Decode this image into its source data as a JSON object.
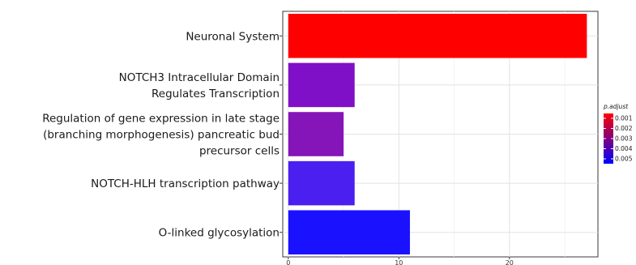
{
  "chart_data": {
    "type": "bar",
    "orientation": "horizontal",
    "categories": [
      [
        "Neuronal System"
      ],
      [
        "NOTCH3 Intracellular Domain",
        "Regulates Transcription"
      ],
      [
        "Regulation of gene expression in late stage",
        "(branching morphogenesis) pancreatic bud",
        "precursor cells"
      ],
      [
        "NOTCH-HLH transcription pathway"
      ],
      [
        "O-linked glycosylation"
      ]
    ],
    "values": [
      27,
      6,
      5,
      6,
      11
    ],
    "p_adjust": [
      0.0006,
      0.0033,
      0.0034,
      0.0049,
      0.0054
    ],
    "bar_colors": [
      "#ff0000",
      "#7f10c8",
      "#8514b9",
      "#4a1ff0",
      "#1a11ff"
    ],
    "xlim": [
      -0.5,
      28
    ],
    "x_ticks": [
      0,
      10,
      20
    ],
    "xlabel": "",
    "ylabel": "",
    "grid": true,
    "legend": {
      "position": "right",
      "title": "p.adjust",
      "labels": [
        "0.001",
        "0.002",
        "0.003",
        "0.004",
        "0.005"
      ],
      "color_high": "#ff0000",
      "color_low": "#0000ff"
    }
  }
}
